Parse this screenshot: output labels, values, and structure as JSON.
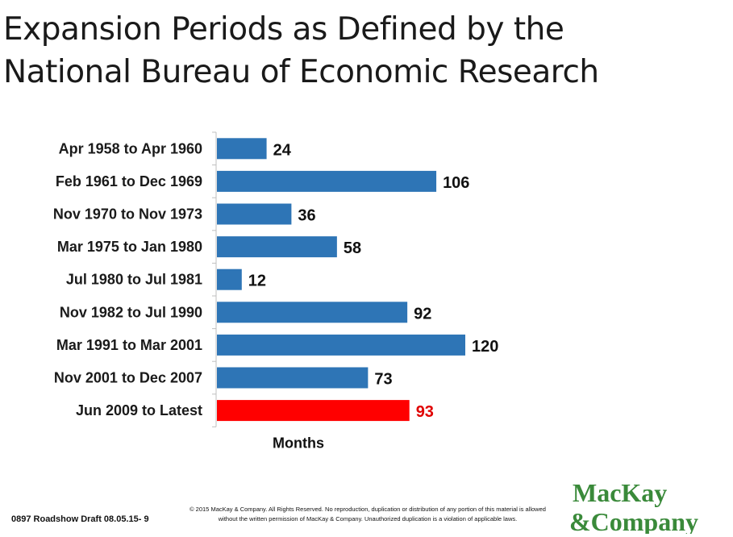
{
  "title": {
    "line1": "Expansion Periods as Defined by the",
    "line2": "National Bureau of Economic Research"
  },
  "chart_data": {
    "type": "bar",
    "orientation": "horizontal",
    "categories": [
      "Apr 1958 to Apr 1960",
      "Feb 1961 to Dec 1969",
      "Nov 1970 to Nov 1973",
      "Mar 1975 to Jan 1980",
      "Jul 1980 to Jul 1981",
      "Nov 1982 to Jul 1990",
      "Mar 1991 to Mar 2001",
      "Nov 2001 to Dec 2007",
      "Jun 2009 to Latest"
    ],
    "values": [
      24,
      106,
      36,
      58,
      12,
      92,
      120,
      73,
      93
    ],
    "colors": [
      "#2e75b6",
      "#2e75b6",
      "#2e75b6",
      "#2e75b6",
      "#2e75b6",
      "#2e75b6",
      "#2e75b6",
      "#2e75b6",
      "#ff0000"
    ],
    "value_label_colors": [
      "#111111",
      "#111111",
      "#111111",
      "#111111",
      "#111111",
      "#111111",
      "#111111",
      "#111111",
      "#e00000"
    ],
    "xlabel": "Months",
    "xlim": [
      0,
      120
    ],
    "grid": false,
    "legend": "none"
  },
  "footer": {
    "draft": "0897 Roadshow  Draft 08.05.15- 9",
    "copyright_line1": "© 2015 MacKay & Company.  All Rights Reserved.  No reproduction, duplication or distribution of any portion of this material is allowed",
    "copyright_line2": "without the written permission of MacKay & Company. Unauthorized duplication is a violation of applicable laws."
  },
  "logo": {
    "line1": "MacKay",
    "line2": "&Company",
    "color": "#3a8a3a"
  }
}
